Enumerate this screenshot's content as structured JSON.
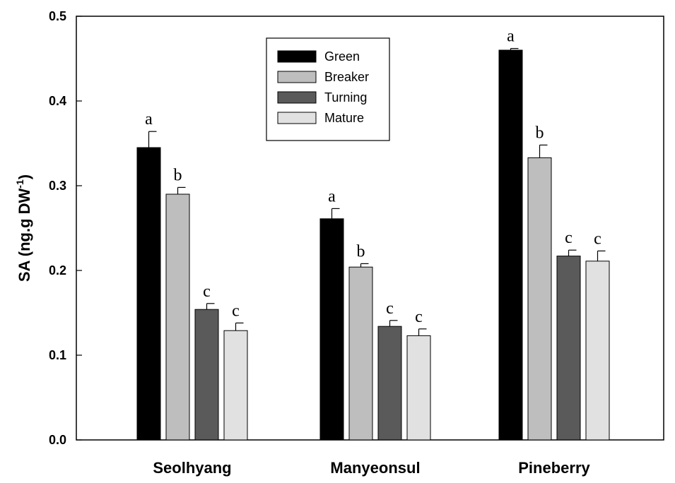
{
  "chart_data": {
    "type": "bar",
    "ylabel_main": "SA (ng.g DW",
    "ylabel_sup": "-1",
    "ylabel_close": ")",
    "xlabel": "",
    "ylim": [
      0,
      0.5
    ],
    "yticks": [
      "0.0",
      "0.1",
      "0.2",
      "0.3",
      "0.4",
      "0.5"
    ],
    "ytick_values": [
      0.0,
      0.1,
      0.2,
      0.3,
      0.4,
      0.5
    ],
    "categories": [
      "Seolhyang",
      "Manyeonsul",
      "Pineberry"
    ],
    "legend_position": "top-center",
    "series": [
      {
        "name": "Green",
        "color": "#000000",
        "values": [
          0.345,
          0.261,
          0.46
        ],
        "errors": [
          0.019,
          0.012,
          0.002
        ],
        "labels": [
          "a",
          "a",
          "a"
        ]
      },
      {
        "name": "Breaker",
        "color": "#bebebe",
        "values": [
          0.29,
          0.204,
          0.333
        ],
        "errors": [
          0.008,
          0.004,
          0.015
        ],
        "labels": [
          "b",
          "b",
          "b"
        ]
      },
      {
        "name": "Turning",
        "color": "#5a5a5a",
        "values": [
          0.154,
          0.134,
          0.217
        ],
        "errors": [
          0.007,
          0.007,
          0.007
        ],
        "labels": [
          "c",
          "c",
          "c"
        ]
      },
      {
        "name": "Mature",
        "color": "#e1e1e1",
        "values": [
          0.129,
          0.123,
          0.211
        ],
        "errors": [
          0.009,
          0.008,
          0.012
        ],
        "labels": [
          "c",
          "c",
          "c"
        ]
      }
    ]
  }
}
